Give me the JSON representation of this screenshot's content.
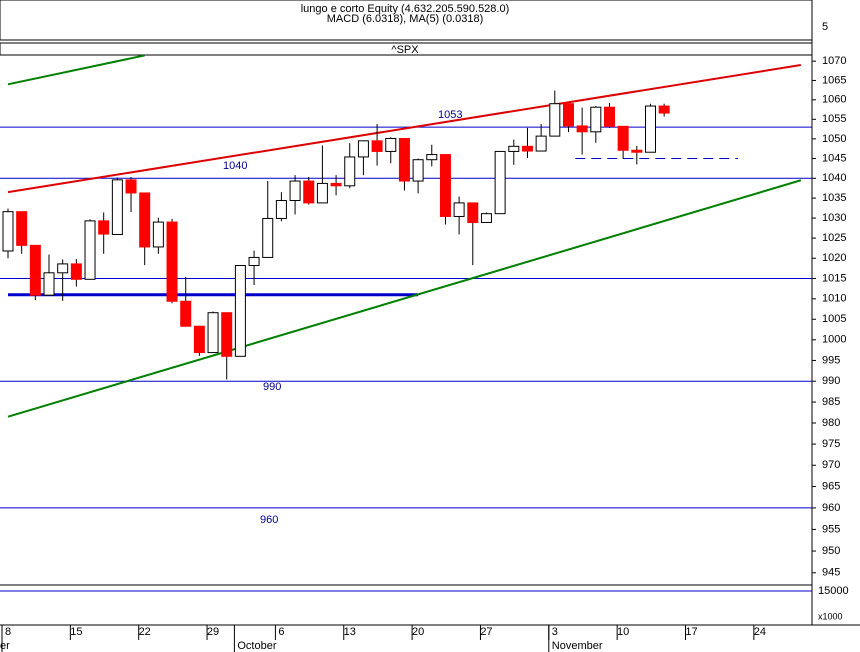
{
  "chart_data": {
    "type": "candlestick",
    "title": "^SPX",
    "top_panel": {
      "lines": [
        "lungo e corto Equity (4.632.205.590.528.0)",
        "MACD (6.0318), MA(5) (0.0318)"
      ],
      "tick": 5
    },
    "bottom_panel": {
      "tick": 15000,
      "unit": "x1000"
    },
    "log_scale": true,
    "up_color": "#ffffff",
    "down_color": "#ff0000",
    "level_color": "#0000cc",
    "categories": [
      "8",
      null,
      null,
      null,
      null,
      "15",
      null,
      null,
      null,
      null,
      "22",
      null,
      null,
      null,
      null,
      "29",
      null,
      null,
      null,
      null,
      "6",
      null,
      null,
      null,
      null,
      "13",
      null,
      null,
      null,
      null,
      "20",
      null,
      null,
      null,
      null,
      "27",
      null,
      null,
      null,
      null,
      "3",
      null,
      null,
      null,
      null,
      "10",
      null,
      null,
      null,
      null,
      "17",
      null,
      null,
      null,
      null,
      "24",
      null,
      null,
      null
    ],
    "months": [
      "er",
      null,
      null,
      null,
      null,
      null,
      null,
      null,
      null,
      null,
      null,
      null,
      null,
      null,
      null,
      null,
      null,
      "October",
      null,
      null,
      null,
      null,
      null,
      null,
      null,
      null,
      null,
      null,
      null,
      null,
      null,
      null,
      null,
      null,
      null,
      null,
      null,
      null,
      null,
      null,
      "November",
      null,
      null,
      null,
      null,
      null,
      null,
      null,
      null,
      null,
      null,
      null,
      null,
      null,
      null,
      null,
      null,
      null,
      null
    ],
    "open": [
      1021.8,
      1031.6,
      1023.2,
      1010.9,
      1016.4,
      1018.6,
      1014.8,
      1029.3,
      1025.9,
      1039.6,
      1036.3,
      1022.8,
      1029.0,
      1009.4,
      1003.3,
      996.9,
      1006.6,
      996.0,
      1018.2,
      1020.2,
      1029.9,
      1034.4,
      1039.3,
      1033.8,
      1038.7,
      1038.1,
      1045.4,
      1049.5,
      1046.8,
      1050.1,
      1039.3,
      1044.7,
      1046.0,
      1030.4,
      1033.8,
      1028.9,
      1031.1,
      1046.8,
      1048.1,
      1046.9,
      1050.7,
      1059.0,
      1053.3,
      1051.8,
      1058.1,
      1053.2,
      1047.1,
      1046.6,
      1058.4,
      null,
      null,
      null,
      null,
      null,
      null,
      null,
      null,
      null,
      null
    ],
    "high": [
      1032.4,
      1031.6,
      1023.2,
      1020.9,
      1019.7,
      1019.8,
      1029.7,
      1031.4,
      1040.2,
      1040.3,
      1036.3,
      1030.1,
      1029.8,
      1015.4,
      1003.4,
      1006.9,
      1006.6,
      1018.2,
      1021.9,
      1039.3,
      1036.5,
      1040.8,
      1040.3,
      1048.3,
      1040.8,
      1048.9,
      1049.5,
      1053.8,
      1050.4,
      1050.1,
      1045.0,
      1048.5,
      1046.0,
      1035.4,
      1033.8,
      1031.4,
      1046.8,
      1049.8,
      1052.8,
      1053.8,
      1062.4,
      1059.0,
      1058.0,
      1058.4,
      1059.2,
      1053.2,
      1048.2,
      1059.0,
      1059.0,
      null,
      null,
      null,
      null,
      null,
      null,
      null,
      null,
      null,
      null
    ],
    "low": [
      1020.0,
      1021.1,
      1009.7,
      1010.9,
      1009.5,
      1013.0,
      1014.8,
      1021.1,
      1025.9,
      1031.5,
      1018.3,
      1021.1,
      1008.9,
      1003.2,
      996.1,
      996.8,
      990.4,
      996.0,
      1013.4,
      1020.2,
      1029.2,
      1030.9,
      1033.4,
      1033.8,
      1035.7,
      1037.5,
      1040.8,
      1043.2,
      1043.8,
      1036.9,
      1036.2,
      1043.0,
      1028.4,
      1025.9,
      1018.3,
      1028.9,
      1031.1,
      1043.4,
      1045.1,
      1046.9,
      1050.7,
      1051.7,
      1046.0,
      1049.0,
      1052.8,
      1044.9,
      1043.5,
      1046.6,
      1055.7,
      null,
      null,
      null,
      null,
      null,
      null,
      null,
      null,
      null,
      null
    ],
    "close": [
      1031.6,
      1023.2,
      1010.9,
      1016.4,
      1018.6,
      1014.8,
      1029.3,
      1026.0,
      1039.6,
      1036.3,
      1022.8,
      1029.0,
      1009.4,
      1003.3,
      996.9,
      1006.6,
      996.0,
      1018.2,
      1020.2,
      1029.9,
      1034.4,
      1039.3,
      1033.8,
      1038.7,
      1038.1,
      1045.4,
      1049.5,
      1046.8,
      1050.1,
      1039.3,
      1044.7,
      1046.0,
      1030.4,
      1033.8,
      1028.9,
      1031.1,
      1046.8,
      1048.1,
      1046.9,
      1050.7,
      1059.0,
      1053.3,
      1051.8,
      1058.1,
      1053.2,
      1047.1,
      1046.6,
      1058.4,
      1056.6,
      null,
      null,
      null,
      null,
      null,
      null,
      null,
      null,
      null,
      null
    ],
    "levels": [
      1053,
      1040,
      1015,
      990,
      960
    ],
    "segments": [
      {
        "value": 1011,
        "from": 0,
        "to": 30,
        "color": "#0000cc",
        "dashed": false
      },
      {
        "value": 1045,
        "from": 41.5,
        "to": 53.4,
        "color": "#0000cc",
        "dashed": true
      }
    ],
    "trendlines": [
      {
        "color": "#dd0000",
        "from": [
          0,
          1036.5
        ],
        "to": [
          58,
          1069
        ]
      },
      {
        "color": "#008000",
        "from": [
          0,
          981.5
        ],
        "to": [
          58,
          1039.5
        ]
      },
      {
        "color": "#008000",
        "from": [
          0,
          1064
        ],
        "to": [
          10,
          1071.5
        ]
      }
    ],
    "ylim": [
      942.2,
      1071.6
    ],
    "yticks": [
      1070,
      1065,
      1060,
      1055,
      1050,
      1045,
      1040,
      1035,
      1030,
      1025,
      1020,
      1015,
      1010,
      1005,
      1000,
      995,
      990,
      985,
      980,
      975,
      970,
      965,
      960,
      955,
      950,
      945
    ]
  }
}
